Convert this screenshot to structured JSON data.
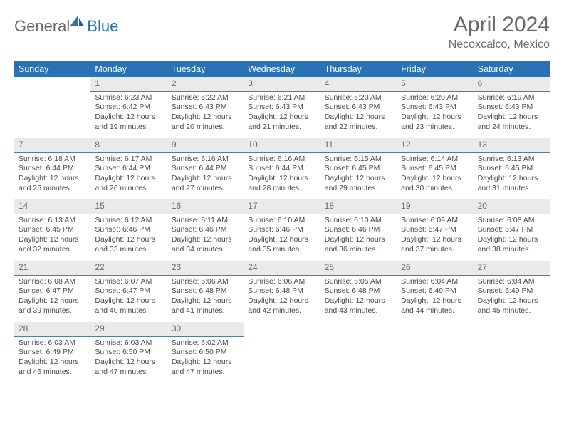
{
  "logo": {
    "part1": "General",
    "part2": "Blue"
  },
  "title": "April 2024",
  "location": "Necoxcalco, Mexico",
  "colors": {
    "header_bg": "#2a72b5",
    "header_text": "#ffffff",
    "daynum_bg": "#eaeaea",
    "daynum_text": "#6a6a6a",
    "daynum_border": "#5a7a9a",
    "body_text": "#4a4a4a",
    "title_text": "#6a6a6a"
  },
  "days_of_week": [
    "Sunday",
    "Monday",
    "Tuesday",
    "Wednesday",
    "Thursday",
    "Friday",
    "Saturday"
  ],
  "cells": [
    {
      "blank": true
    },
    {
      "n": "1",
      "sr": "Sunrise: 6:23 AM",
      "ss": "Sunset: 6:42 PM",
      "dl": "Daylight: 12 hours and 19 minutes."
    },
    {
      "n": "2",
      "sr": "Sunrise: 6:22 AM",
      "ss": "Sunset: 6:43 PM",
      "dl": "Daylight: 12 hours and 20 minutes."
    },
    {
      "n": "3",
      "sr": "Sunrise: 6:21 AM",
      "ss": "Sunset: 6:43 PM",
      "dl": "Daylight: 12 hours and 21 minutes."
    },
    {
      "n": "4",
      "sr": "Sunrise: 6:20 AM",
      "ss": "Sunset: 6:43 PM",
      "dl": "Daylight: 12 hours and 22 minutes."
    },
    {
      "n": "5",
      "sr": "Sunrise: 6:20 AM",
      "ss": "Sunset: 6:43 PM",
      "dl": "Daylight: 12 hours and 23 minutes."
    },
    {
      "n": "6",
      "sr": "Sunrise: 6:19 AM",
      "ss": "Sunset: 6:43 PM",
      "dl": "Daylight: 12 hours and 24 minutes."
    },
    {
      "n": "7",
      "sr": "Sunrise: 6:18 AM",
      "ss": "Sunset: 6:44 PM",
      "dl": "Daylight: 12 hours and 25 minutes."
    },
    {
      "n": "8",
      "sr": "Sunrise: 6:17 AM",
      "ss": "Sunset: 6:44 PM",
      "dl": "Daylight: 12 hours and 26 minutes."
    },
    {
      "n": "9",
      "sr": "Sunrise: 6:16 AM",
      "ss": "Sunset: 6:44 PM",
      "dl": "Daylight: 12 hours and 27 minutes."
    },
    {
      "n": "10",
      "sr": "Sunrise: 6:16 AM",
      "ss": "Sunset: 6:44 PM",
      "dl": "Daylight: 12 hours and 28 minutes."
    },
    {
      "n": "11",
      "sr": "Sunrise: 6:15 AM",
      "ss": "Sunset: 6:45 PM",
      "dl": "Daylight: 12 hours and 29 minutes."
    },
    {
      "n": "12",
      "sr": "Sunrise: 6:14 AM",
      "ss": "Sunset: 6:45 PM",
      "dl": "Daylight: 12 hours and 30 minutes."
    },
    {
      "n": "13",
      "sr": "Sunrise: 6:13 AM",
      "ss": "Sunset: 6:45 PM",
      "dl": "Daylight: 12 hours and 31 minutes."
    },
    {
      "n": "14",
      "sr": "Sunrise: 6:13 AM",
      "ss": "Sunset: 6:45 PM",
      "dl": "Daylight: 12 hours and 32 minutes."
    },
    {
      "n": "15",
      "sr": "Sunrise: 6:12 AM",
      "ss": "Sunset: 6:46 PM",
      "dl": "Daylight: 12 hours and 33 minutes."
    },
    {
      "n": "16",
      "sr": "Sunrise: 6:11 AM",
      "ss": "Sunset: 6:46 PM",
      "dl": "Daylight: 12 hours and 34 minutes."
    },
    {
      "n": "17",
      "sr": "Sunrise: 6:10 AM",
      "ss": "Sunset: 6:46 PM",
      "dl": "Daylight: 12 hours and 35 minutes."
    },
    {
      "n": "18",
      "sr": "Sunrise: 6:10 AM",
      "ss": "Sunset: 6:46 PM",
      "dl": "Daylight: 12 hours and 36 minutes."
    },
    {
      "n": "19",
      "sr": "Sunrise: 6:09 AM",
      "ss": "Sunset: 6:47 PM",
      "dl": "Daylight: 12 hours and 37 minutes."
    },
    {
      "n": "20",
      "sr": "Sunrise: 6:08 AM",
      "ss": "Sunset: 6:47 PM",
      "dl": "Daylight: 12 hours and 38 minutes."
    },
    {
      "n": "21",
      "sr": "Sunrise: 6:08 AM",
      "ss": "Sunset: 6:47 PM",
      "dl": "Daylight: 12 hours and 39 minutes."
    },
    {
      "n": "22",
      "sr": "Sunrise: 6:07 AM",
      "ss": "Sunset: 6:47 PM",
      "dl": "Daylight: 12 hours and 40 minutes."
    },
    {
      "n": "23",
      "sr": "Sunrise: 6:06 AM",
      "ss": "Sunset: 6:48 PM",
      "dl": "Daylight: 12 hours and 41 minutes."
    },
    {
      "n": "24",
      "sr": "Sunrise: 6:06 AM",
      "ss": "Sunset: 6:48 PM",
      "dl": "Daylight: 12 hours and 42 minutes."
    },
    {
      "n": "25",
      "sr": "Sunrise: 6:05 AM",
      "ss": "Sunset: 6:48 PM",
      "dl": "Daylight: 12 hours and 43 minutes."
    },
    {
      "n": "26",
      "sr": "Sunrise: 6:04 AM",
      "ss": "Sunset: 6:49 PM",
      "dl": "Daylight: 12 hours and 44 minutes."
    },
    {
      "n": "27",
      "sr": "Sunrise: 6:04 AM",
      "ss": "Sunset: 6:49 PM",
      "dl": "Daylight: 12 hours and 45 minutes."
    },
    {
      "n": "28",
      "sr": "Sunrise: 6:03 AM",
      "ss": "Sunset: 6:49 PM",
      "dl": "Daylight: 12 hours and 46 minutes."
    },
    {
      "n": "29",
      "sr": "Sunrise: 6:03 AM",
      "ss": "Sunset: 6:50 PM",
      "dl": "Daylight: 12 hours and 47 minutes."
    },
    {
      "n": "30",
      "sr": "Sunrise: 6:02 AM",
      "ss": "Sunset: 6:50 PM",
      "dl": "Daylight: 12 hours and 47 minutes."
    },
    {
      "blank": true
    },
    {
      "blank": true
    },
    {
      "blank": true
    },
    {
      "blank": true
    }
  ]
}
